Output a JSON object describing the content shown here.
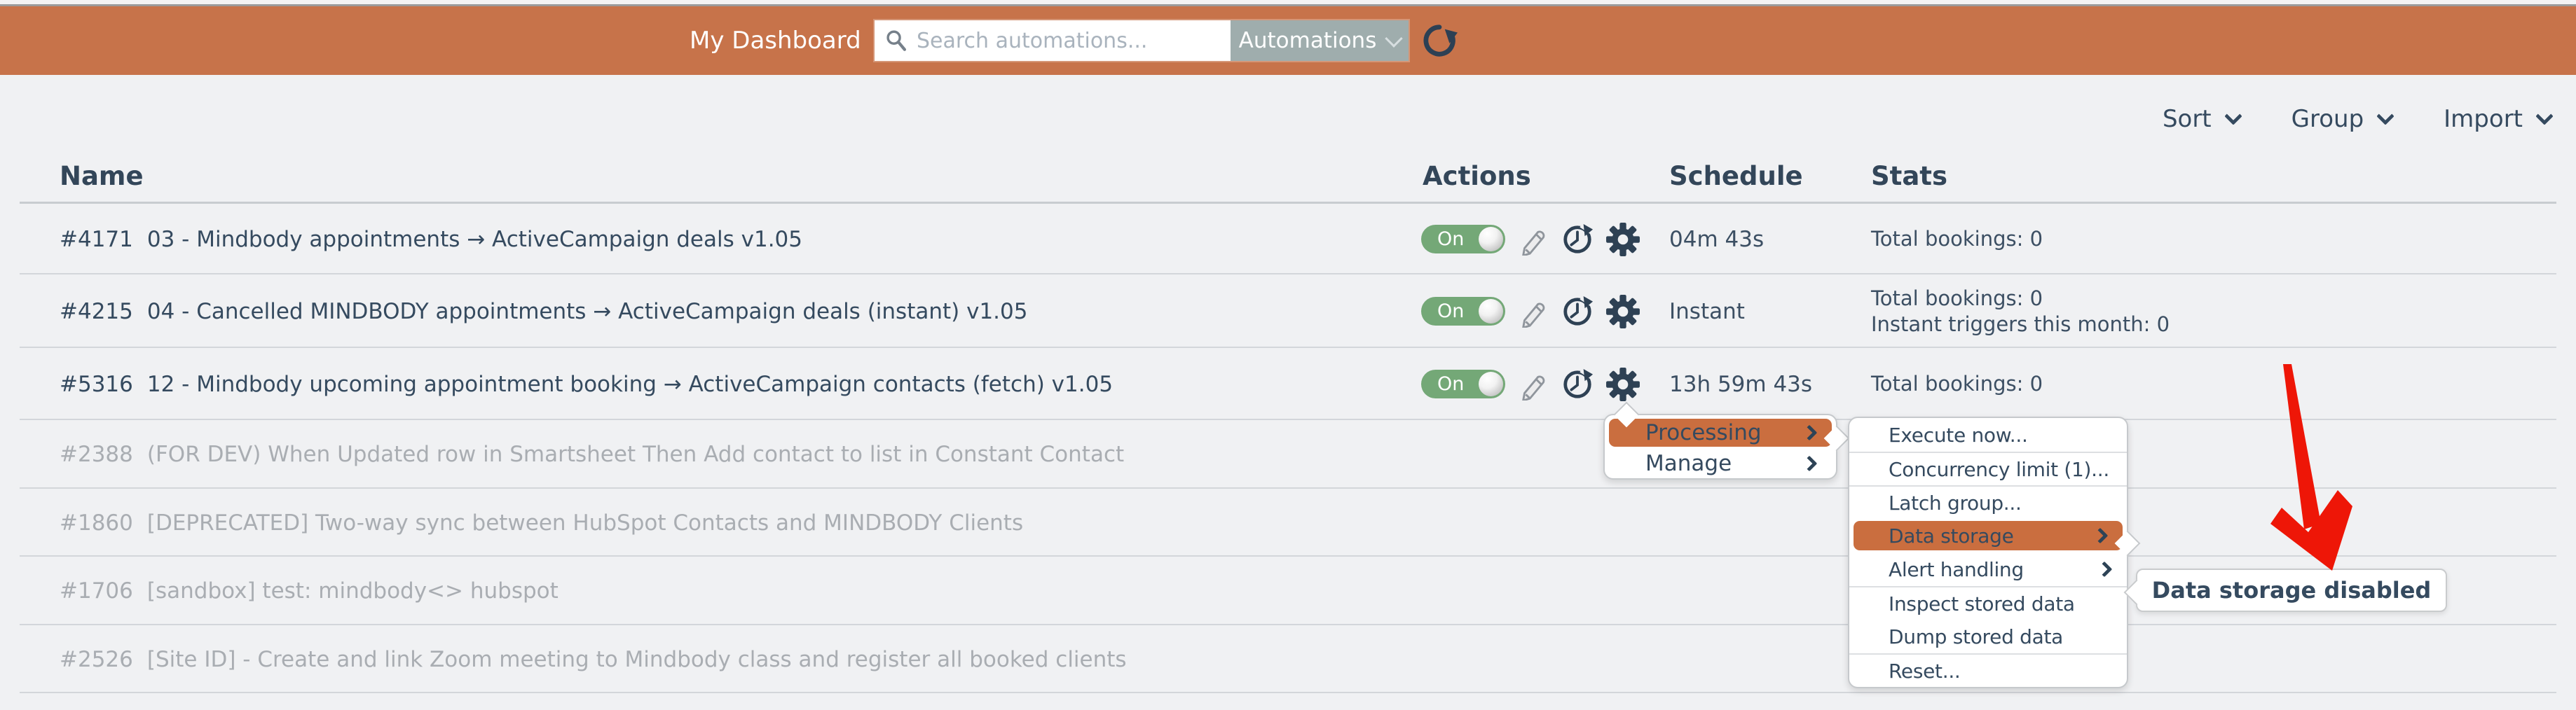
{
  "topbar": {
    "title": "My Dashboard",
    "search_placeholder": "Search automations...",
    "scope_label": "Automations",
    "icons": [
      "search-icon",
      "chevron-down-icon",
      "refresh-icon"
    ]
  },
  "view_tools": {
    "sort_label": "Sort",
    "group_label": "Group",
    "import_label": "Import"
  },
  "table": {
    "headers": {
      "name": "Name",
      "actions": "Actions",
      "schedule": "Schedule",
      "stats": "Stats"
    },
    "rows": [
      {
        "id": "#4171",
        "name": "03 - Mindbody appointments → ActiveCampaign deals v1.05",
        "enabled": true,
        "toggle": "On",
        "schedule": "04m 43s",
        "stats": [
          "Total bookings: 0"
        ]
      },
      {
        "id": "#4215",
        "name": "04 - Cancelled MINDBODY appointments → ActiveCampaign deals (instant) v1.05",
        "enabled": true,
        "toggle": "On",
        "schedule": "Instant",
        "stats": [
          "Total bookings: 0",
          "Instant triggers this month: 0"
        ]
      },
      {
        "id": "#5316",
        "name": "12 - Mindbody upcoming appointment booking → ActiveCampaign contacts (fetch) v1.05",
        "enabled": true,
        "toggle": "On",
        "schedule": "13h 59m 43s",
        "stats": [
          "Total bookings: 0"
        ]
      },
      {
        "id": "#2388",
        "name": "(FOR DEV) When Updated row in Smartsheet Then Add contact to list in Constant Contact",
        "enabled": false
      },
      {
        "id": "#1860",
        "name": "[DEPRECATED] Two-way sync between HubSpot Contacts and MINDBODY Clients",
        "enabled": false
      },
      {
        "id": "#1706",
        "name": "[sandbox] test: mindbody<> hubspot",
        "enabled": false
      },
      {
        "id": "#2526",
        "name": "[Site ID] - Create and link Zoom meeting to Mindbody class and register all booked clients",
        "enabled": false
      }
    ],
    "action_icons": [
      "pencil-icon",
      "clock-icon",
      "gear-icon"
    ]
  },
  "context_menu": {
    "items": [
      {
        "label": "Processing",
        "chevron": true,
        "highlighted": true
      },
      {
        "label": "Manage",
        "chevron": true,
        "highlighted": false
      }
    ]
  },
  "submenu": {
    "items": [
      {
        "label": "Execute now...",
        "sep_above": false,
        "chevron": false,
        "highlighted": false
      },
      {
        "label": "Concurrency limit (1)...",
        "sep_above": true,
        "chevron": false,
        "highlighted": false
      },
      {
        "label": "Latch group...",
        "sep_above": true,
        "chevron": false,
        "highlighted": false
      },
      {
        "label": "Data storage",
        "sep_above": true,
        "chevron": true,
        "highlighted": true
      },
      {
        "label": "Alert handling",
        "sep_above": false,
        "chevron": true,
        "highlighted": false
      },
      {
        "label": "Inspect stored data",
        "sep_above": true,
        "chevron": false,
        "highlighted": false
      },
      {
        "label": "Dump stored data",
        "sep_above": false,
        "chevron": false,
        "highlighted": false
      },
      {
        "label": "Reset...",
        "sep_above": true,
        "chevron": false,
        "highlighted": false
      }
    ]
  },
  "tooltip": {
    "text": "Data storage disabled"
  },
  "colors": {
    "topbar_orange": "#c7734a",
    "menu_highlight_orange": "#ca6e3f",
    "navy_text": "#354a5f",
    "disabled_text": "#a9adb2",
    "toggle_green": "#74a877",
    "annotation_red": "#ee1607",
    "background": "#f0f1f3"
  }
}
